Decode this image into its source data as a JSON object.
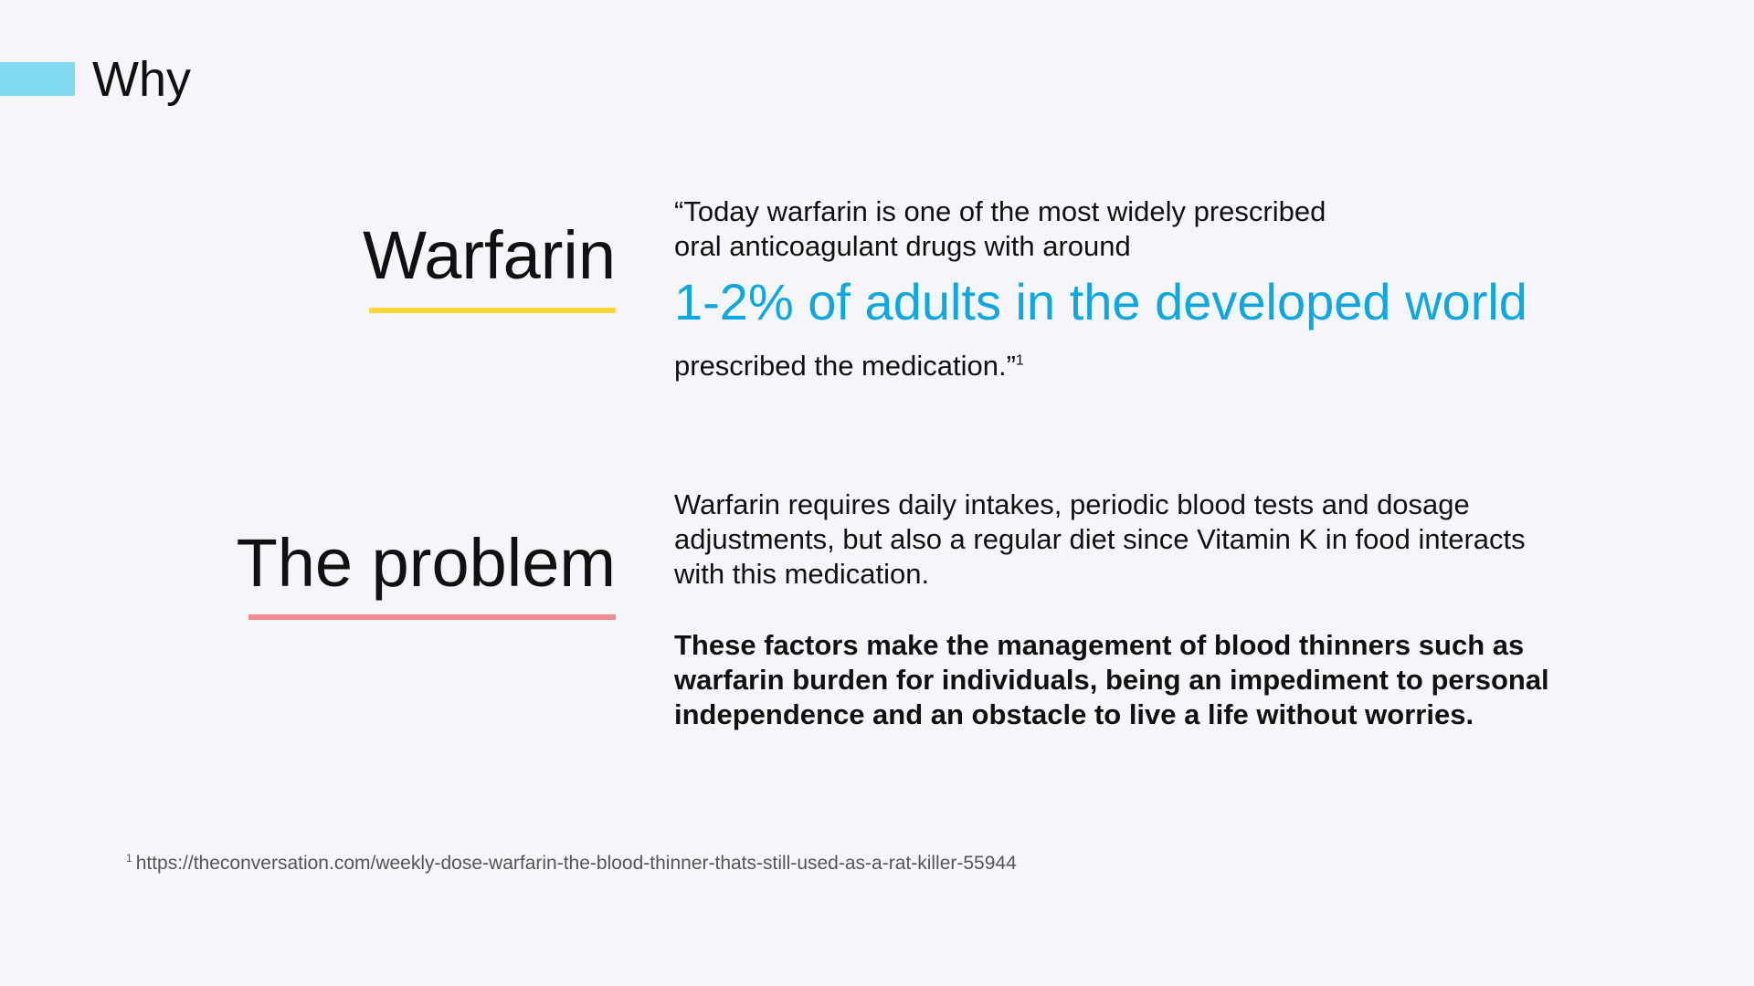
{
  "header": {
    "title": "Why",
    "accent_color": "#80dbf0"
  },
  "warfarin_section": {
    "heading": "Warfarin",
    "underline_color": "#fdd835",
    "quote_line_1": "“Today warfarin is one of the most widely prescribed",
    "quote_line_2": "oral anticoagulant drugs with around",
    "highlight": "1-2% of adults in the developed world",
    "highlight_color": "#0fa7df",
    "quote_end": "prescribed the medication.”",
    "footnote_marker": "1"
  },
  "problem_section": {
    "heading": "The problem",
    "underline_color": "#f28b8b",
    "paragraph": "Warfarin requires daily intakes, periodic blood tests and dosage adjustments, but also a regular diet since Vitamin K in food interacts with this medication.",
    "bold_paragraph": "These factors make the management of blood thinners such as warfarin burden for individuals, being an impediment to personal independence and an obstacle to live a life without worries."
  },
  "footnote": {
    "marker": "1",
    "url": "https://theconversation.com/weekly-dose-warfarin-the-blood-thinner-thats-still-used-as-a-rat-killer-55944"
  }
}
